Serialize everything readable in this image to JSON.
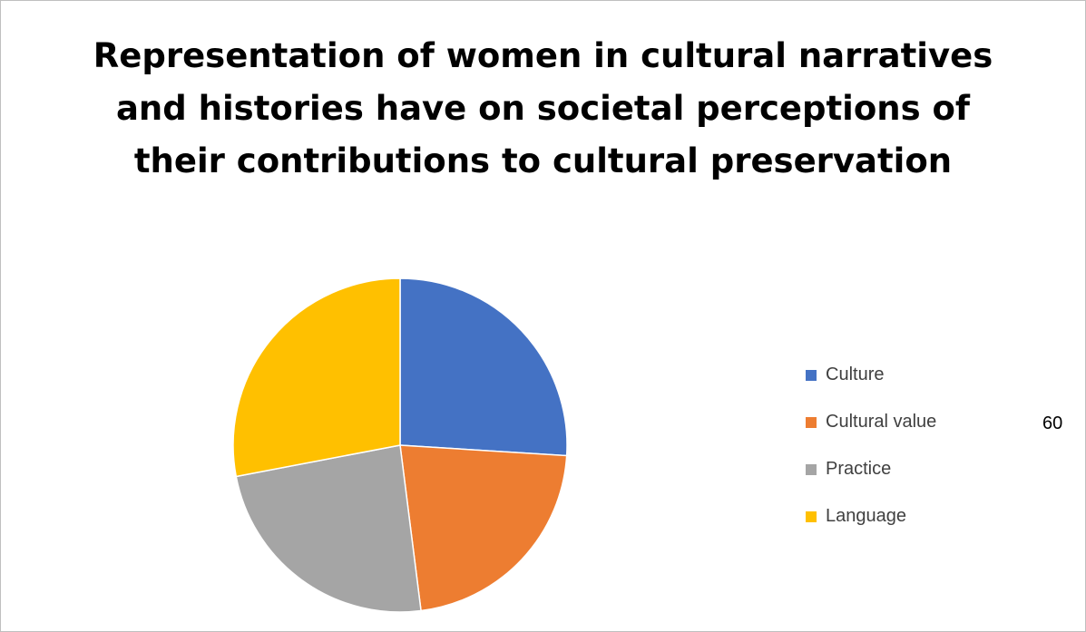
{
  "chart_data": {
    "type": "pie",
    "title": "Representation of women in cultural narratives and histories have on societal perceptions of their contributions to cultural preservation",
    "categories": [
      "Culture",
      "Cultural value",
      "Practice",
      "Language"
    ],
    "values": [
      26,
      22,
      24,
      28
    ],
    "colors": [
      "#4472C4",
      "#ED7D31",
      "#A5A5A5",
      "#FFC000"
    ],
    "legend_position": "right",
    "stray_label": "60"
  }
}
